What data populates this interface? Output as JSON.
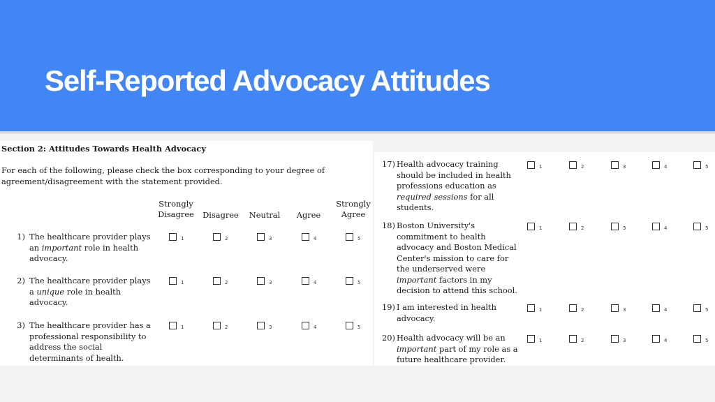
{
  "slide": {
    "title": "Self-Reported Advocacy Attitudes"
  },
  "section": {
    "heading": "Section 2: Attitudes Towards Health Advocacy",
    "instructions": [
      "For each of the following, please check the box corresponding to your degree of",
      "agreement/disagreement with the statement provided."
    ]
  },
  "scale": {
    "headers": [
      {
        "lines": [
          "Strongly",
          "Disagree"
        ]
      },
      {
        "lines": [
          "Disagree"
        ]
      },
      {
        "lines": [
          "Neutral"
        ]
      },
      {
        "lines": [
          "Agree"
        ]
      },
      {
        "lines": [
          "Strongly",
          "Agree"
        ]
      }
    ],
    "values": [
      "1",
      "2",
      "3",
      "4",
      "5"
    ]
  },
  "left_items": [
    {
      "number": "1)",
      "lines": [
        "The healthcare provider plays",
        "an important role in health",
        "advocacy."
      ]
    },
    {
      "number": "2)",
      "lines": [
        "The healthcare provider plays",
        "a unique role in health",
        "advocacy."
      ]
    },
    {
      "number": "3)",
      "lines": [
        "The healthcare provider has a",
        "professional responsibility to",
        "address the social",
        "determinants of health."
      ]
    }
  ],
  "right_items": [
    {
      "number": "17)",
      "lines": [
        "Health advocacy training",
        "should be included in health",
        "professions education as",
        "required sessions for all",
        "students."
      ]
    },
    {
      "number": "18)",
      "lines": [
        "Boston University's",
        "commitment to health",
        "advocacy and Boston Medical",
        "Center's mission to care for",
        "the underserved were",
        "important factors in my",
        "decision to attend this school."
      ]
    },
    {
      "number": "19)",
      "lines": [
        "I am interested in health",
        "advocacy."
      ]
    },
    {
      "number": "20)",
      "lines": [
        "Health advocacy will be an",
        "important part of my role as a",
        "future healthcare provider."
      ]
    }
  ]
}
